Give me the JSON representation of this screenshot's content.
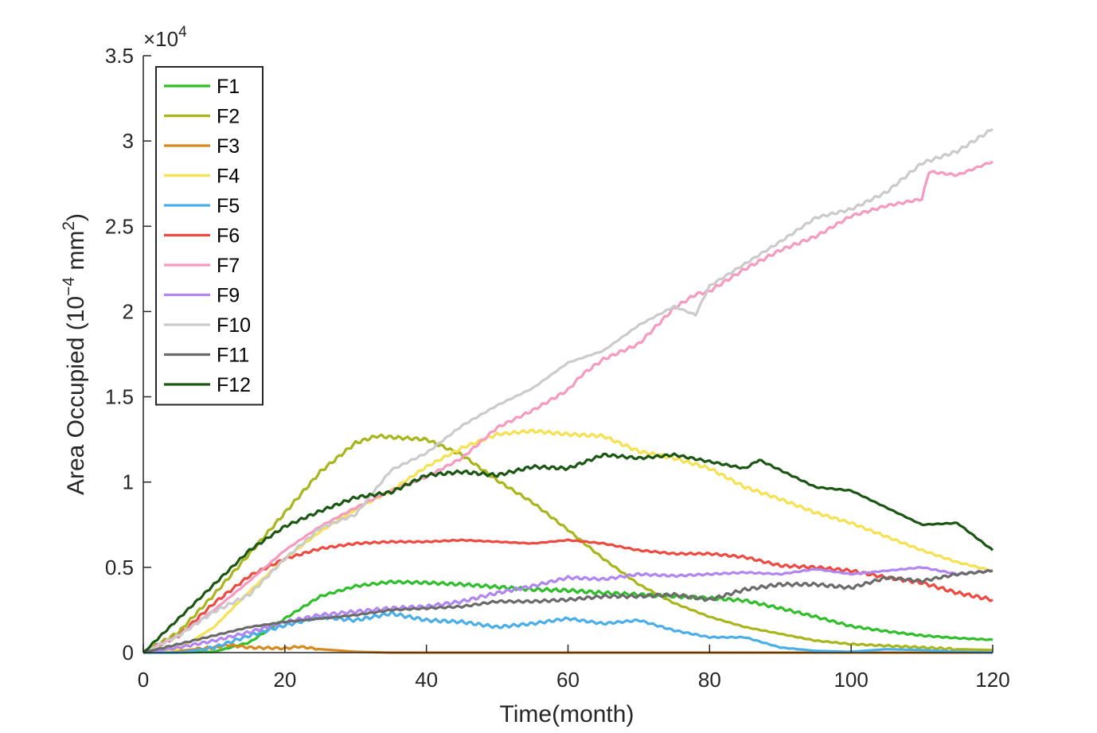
{
  "chart_data": {
    "type": "line",
    "xlabel": "Time(month)",
    "ylabel_main": "Area Occupied (10",
    "ylabel_exp": "−4",
    "ylabel_unit": " mm",
    "ylabel_unit_exp": "2",
    "ylabel_close": ")",
    "y_multiplier": "×10",
    "y_multiplier_exp": "4",
    "xlim": [
      0,
      120
    ],
    "ylim": [
      0,
      35000
    ],
    "x_ticks": [
      0,
      20,
      40,
      60,
      80,
      100,
      120
    ],
    "x_tick_labels": [
      "0",
      "20",
      "40",
      "60",
      "80",
      "100",
      "120"
    ],
    "y_ticks": [
      0,
      5000,
      10000,
      15000,
      20000,
      25000,
      30000,
      35000
    ],
    "y_tick_labels": [
      "0",
      "0.5",
      "1",
      "1.5",
      "2",
      "2.5",
      "3",
      "3.5"
    ],
    "grid": false,
    "legend_position": "top-left",
    "series": [
      {
        "name": "F1",
        "color": "#2fbf2a",
        "x": [
          0,
          5,
          10,
          15,
          20,
          25,
          30,
          35,
          40,
          45,
          50,
          55,
          60,
          65,
          70,
          75,
          80,
          85,
          90,
          95,
          100,
          105,
          110,
          115,
          120
        ],
        "y": [
          0,
          0,
          50,
          600,
          2000,
          3300,
          3900,
          4150,
          4100,
          4000,
          3850,
          3700,
          3650,
          3500,
          3400,
          3300,
          3200,
          3050,
          2600,
          2100,
          1550,
          1250,
          1000,
          850,
          750
        ]
      },
      {
        "name": "F2",
        "color": "#a8b61c",
        "x": [
          0,
          5,
          10,
          15,
          20,
          25,
          30,
          33,
          36,
          40,
          45,
          50,
          55,
          60,
          65,
          70,
          75,
          80,
          85,
          90,
          95,
          100,
          105,
          110,
          115,
          120
        ],
        "y": [
          0,
          1200,
          3400,
          5800,
          8200,
          10600,
          12300,
          12700,
          12600,
          12500,
          11600,
          10100,
          8800,
          7200,
          5500,
          4000,
          2900,
          2100,
          1500,
          1100,
          700,
          500,
          400,
          300,
          200,
          150
        ]
      },
      {
        "name": "F3",
        "color": "#d9891c",
        "x": [
          0,
          5,
          10,
          12,
          15,
          20,
          22,
          25,
          30,
          35,
          40,
          60,
          80,
          100,
          120
        ],
        "y": [
          0,
          100,
          300,
          450,
          300,
          250,
          350,
          200,
          50,
          0,
          0,
          0,
          0,
          0,
          0
        ]
      },
      {
        "name": "F4",
        "color": "#f5e152",
        "x": [
          0,
          5,
          10,
          15,
          20,
          25,
          30,
          35,
          40,
          45,
          50,
          55,
          60,
          65,
          70,
          75,
          80,
          85,
          90,
          95,
          100,
          105,
          110,
          115,
          120
        ],
        "y": [
          0,
          200,
          1500,
          3600,
          5500,
          7100,
          8400,
          9500,
          10900,
          12000,
          12800,
          13000,
          12800,
          12700,
          11800,
          11400,
          10800,
          9700,
          9000,
          8200,
          7600,
          6800,
          6000,
          5300,
          4800
        ]
      },
      {
        "name": "F5",
        "color": "#4aaee8",
        "x": [
          0,
          5,
          10,
          15,
          20,
          25,
          30,
          35,
          40,
          45,
          50,
          55,
          60,
          65,
          70,
          75,
          80,
          85,
          90,
          95,
          100,
          105,
          110,
          115,
          120
        ],
        "y": [
          0,
          0,
          300,
          1000,
          1600,
          2100,
          1900,
          2300,
          1900,
          1800,
          1500,
          1700,
          2000,
          1700,
          1900,
          1300,
          900,
          900,
          300,
          100,
          50,
          200,
          150,
          50,
          0
        ]
      },
      {
        "name": "F6",
        "color": "#ef4a41",
        "x": [
          0,
          5,
          10,
          15,
          20,
          25,
          30,
          35,
          40,
          45,
          50,
          55,
          60,
          65,
          70,
          75,
          80,
          85,
          90,
          95,
          100,
          105,
          110,
          115,
          120
        ],
        "y": [
          0,
          1000,
          2900,
          4500,
          5500,
          6100,
          6400,
          6500,
          6500,
          6600,
          6500,
          6400,
          6600,
          6400,
          6000,
          5800,
          5800,
          5600,
          5100,
          5000,
          4800,
          4400,
          4100,
          3500,
          3100
        ]
      },
      {
        "name": "F7",
        "color": "#f79ac0",
        "x": [
          0,
          5,
          10,
          15,
          20,
          25,
          30,
          35,
          40,
          45,
          50,
          55,
          60,
          62,
          65,
          70,
          75,
          78,
          80,
          85,
          90,
          95,
          100,
          105,
          110,
          111,
          115,
          120
        ],
        "y": [
          0,
          1000,
          2500,
          4200,
          6000,
          7400,
          8500,
          9500,
          10300,
          11400,
          13200,
          14200,
          15400,
          16300,
          17200,
          18100,
          20200,
          21000,
          21200,
          22500,
          23600,
          24400,
          25600,
          26200,
          26600,
          28200,
          28000,
          28800
        ]
      },
      {
        "name": "F9",
        "color": "#b286f0",
        "x": [
          0,
          5,
          10,
          15,
          20,
          25,
          30,
          35,
          40,
          45,
          50,
          55,
          60,
          65,
          70,
          75,
          80,
          85,
          90,
          95,
          100,
          105,
          110,
          115,
          120
        ],
        "y": [
          0,
          300,
          700,
          1200,
          1800,
          2200,
          2400,
          2600,
          2700,
          3000,
          3500,
          3900,
          4400,
          4300,
          4600,
          4500,
          4600,
          4700,
          4600,
          4900,
          4600,
          4800,
          5000,
          4600,
          4800
        ]
      },
      {
        "name": "F10",
        "color": "#cbcbcb",
        "x": [
          0,
          5,
          10,
          15,
          20,
          25,
          30,
          35,
          40,
          45,
          50,
          55,
          60,
          65,
          70,
          75,
          78,
          80,
          85,
          90,
          95,
          100,
          105,
          110,
          115,
          120
        ],
        "y": [
          0,
          1000,
          2400,
          3400,
          5500,
          7300,
          8100,
          10700,
          11700,
          13300,
          14500,
          15500,
          17000,
          17700,
          19200,
          20300,
          19800,
          21500,
          22800,
          24100,
          25500,
          26000,
          27000,
          28700,
          29400,
          30700
        ]
      },
      {
        "name": "F11",
        "color": "#6b6b6b",
        "x": [
          0,
          5,
          10,
          15,
          20,
          25,
          30,
          35,
          40,
          45,
          50,
          55,
          60,
          65,
          70,
          75,
          80,
          85,
          90,
          95,
          100,
          105,
          110,
          115,
          120
        ],
        "y": [
          0,
          500,
          1000,
          1500,
          1800,
          2000,
          2200,
          2500,
          2600,
          2700,
          3000,
          3000,
          3100,
          3300,
          3300,
          3400,
          3100,
          3700,
          4000,
          4000,
          3800,
          4400,
          4200,
          4600,
          4800
        ]
      },
      {
        "name": "F12",
        "color": "#1b5613",
        "x": [
          0,
          5,
          10,
          15,
          20,
          25,
          30,
          35,
          40,
          45,
          50,
          55,
          60,
          65,
          70,
          75,
          80,
          85,
          87,
          90,
          95,
          100,
          105,
          110,
          115,
          120
        ],
        "y": [
          0,
          2000,
          4000,
          6000,
          7400,
          8300,
          9100,
          9400,
          10400,
          10600,
          10400,
          10900,
          10800,
          11600,
          11400,
          11600,
          11200,
          10800,
          11300,
          10700,
          9700,
          9500,
          8500,
          7500,
          7600,
          6000
        ]
      }
    ]
  }
}
